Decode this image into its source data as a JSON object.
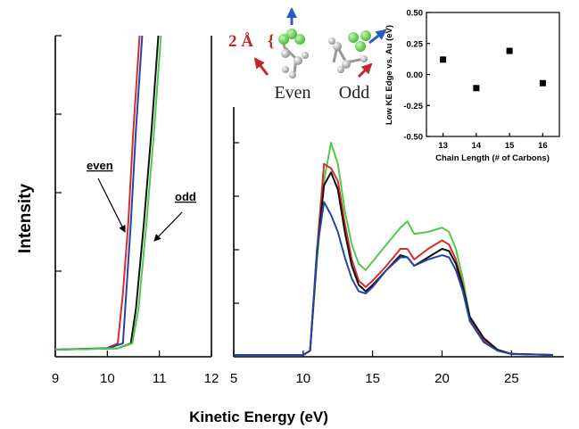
{
  "chart_data": [
    {
      "type": "line",
      "name": "onset-panel",
      "xlabel": "Kinetic Energy (eV)",
      "ylabel": "Intensity",
      "xlim": [
        9,
        12
      ],
      "xticks": [
        "9",
        "10",
        "11",
        "12"
      ],
      "series": [
        {
          "color": "#d32f2f",
          "x": [
            9.0,
            10.0,
            10.2,
            10.3,
            10.4,
            10.5,
            10.62
          ],
          "y": [
            0.0,
            0.005,
            0.02,
            0.18,
            0.4,
            0.7,
            1.0
          ]
        },
        {
          "color": "#2743a6",
          "x": [
            9.0,
            10.0,
            10.3,
            10.35,
            10.45,
            10.55,
            10.67
          ],
          "y": [
            0.0,
            0.004,
            0.02,
            0.15,
            0.4,
            0.7,
            1.0
          ]
        },
        {
          "color": "#111111",
          "x": [
            9.0,
            10.2,
            10.45,
            10.55,
            10.7,
            10.85,
            10.98
          ],
          "y": [
            0.0,
            0.004,
            0.02,
            0.13,
            0.4,
            0.7,
            1.0
          ]
        },
        {
          "color": "#4fc94f",
          "x": [
            9.0,
            10.2,
            10.48,
            10.6,
            10.75,
            10.9,
            11.03
          ],
          "y": [
            0.0,
            0.004,
            0.02,
            0.13,
            0.4,
            0.7,
            1.0
          ]
        }
      ],
      "annotations": [
        "even",
        "odd"
      ]
    },
    {
      "type": "line",
      "name": "spectrum-panel",
      "xlim": [
        5,
        28
      ],
      "xticks": [
        "5",
        "10",
        "15",
        "20",
        "25"
      ],
      "series": [
        {
          "color": "#4fc94f",
          "x": [
            5,
            10,
            10.5,
            11,
            11.5,
            12,
            12.5,
            13,
            13.5,
            14,
            14.5,
            15,
            16,
            17,
            17.5,
            18,
            19,
            20,
            20.5,
            21,
            21.5,
            22,
            23,
            24,
            25,
            28
          ],
          "y": [
            0,
            0,
            0.02,
            0.45,
            0.82,
            1.0,
            0.9,
            0.68,
            0.52,
            0.43,
            0.4,
            0.44,
            0.52,
            0.6,
            0.63,
            0.57,
            0.58,
            0.6,
            0.58,
            0.5,
            0.36,
            0.18,
            0.07,
            0.02,
            0.005,
            0
          ]
        },
        {
          "color": "#d32f2f",
          "x": [
            5,
            10,
            10.5,
            11,
            11.5,
            12,
            12.5,
            13,
            13.5,
            14,
            14.5,
            15,
            16,
            17,
            17.5,
            18,
            19,
            20,
            20.5,
            21,
            21.5,
            22,
            23,
            24,
            25,
            28
          ],
          "y": [
            0,
            0,
            0.02,
            0.5,
            0.9,
            0.88,
            0.82,
            0.62,
            0.45,
            0.35,
            0.32,
            0.35,
            0.42,
            0.5,
            0.5,
            0.45,
            0.5,
            0.54,
            0.52,
            0.45,
            0.33,
            0.17,
            0.07,
            0.02,
            0.005,
            0
          ]
        },
        {
          "color": "#111111",
          "x": [
            5,
            10,
            10.5,
            11,
            11.5,
            12,
            12.5,
            13,
            13.5,
            14,
            14.5,
            15,
            16,
            17,
            17.5,
            18,
            19,
            20,
            20.5,
            21,
            21.5,
            22,
            23,
            24,
            25,
            28
          ],
          "y": [
            0,
            0,
            0.02,
            0.48,
            0.8,
            0.86,
            0.78,
            0.58,
            0.42,
            0.33,
            0.3,
            0.33,
            0.4,
            0.47,
            0.46,
            0.42,
            0.46,
            0.5,
            0.49,
            0.43,
            0.32,
            0.18,
            0.08,
            0.025,
            0.005,
            0
          ]
        },
        {
          "color": "#2743a6",
          "x": [
            5,
            10,
            10.5,
            11,
            11.5,
            12,
            12.5,
            13,
            13.5,
            14,
            14.5,
            15,
            16,
            17,
            17.5,
            18,
            19,
            20,
            20.5,
            21,
            21.5,
            22,
            23,
            24,
            25,
            28
          ],
          "y": [
            0,
            0,
            0.02,
            0.5,
            0.72,
            0.66,
            0.58,
            0.46,
            0.36,
            0.3,
            0.29,
            0.32,
            0.4,
            0.46,
            0.46,
            0.42,
            0.45,
            0.47,
            0.46,
            0.4,
            0.3,
            0.16,
            0.06,
            0.02,
            0.004,
            0
          ]
        }
      ]
    },
    {
      "type": "scatter",
      "name": "inset",
      "xlabel": "Chain Length (# of Carbons)",
      "ylabel": "Low KE Edge vs. Au (eV)",
      "xlim": [
        12.5,
        16.5
      ],
      "ylim": [
        -0.5,
        0.5
      ],
      "xticks": [
        "13",
        "14",
        "15",
        "16"
      ],
      "yticks": [
        "0.50",
        "0.25",
        "0.00",
        "-0.25",
        "-0.50"
      ],
      "x": [
        13,
        14,
        15,
        16
      ],
      "y": [
        0.12,
        -0.11,
        0.19,
        -0.07
      ]
    }
  ],
  "molecule_labels": {
    "even": "Even",
    "odd": "Odd",
    "distance": "2 Å"
  },
  "colors": {
    "green": "#4fc94f",
    "red": "#d32f2f",
    "black": "#111111",
    "blue": "#2743a6",
    "arrow_blue": "#2a5bc4",
    "arrow_red": "#c0282d"
  }
}
